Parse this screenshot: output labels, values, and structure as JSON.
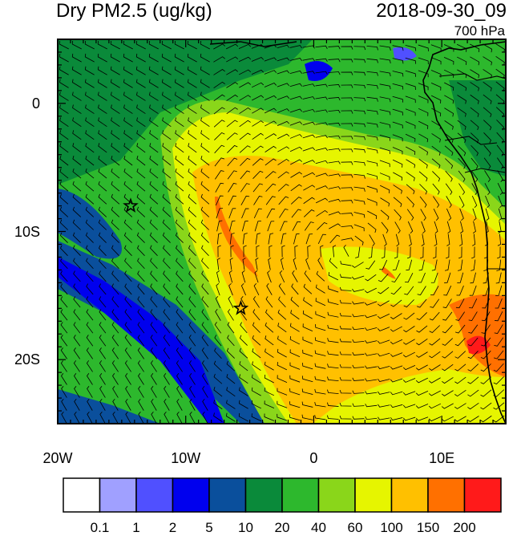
{
  "title_left": "Dry PM2.5 (ug/kg)",
  "title_right": "2018-09-30_09",
  "pressure_level": "700 hPa",
  "map": {
    "lon_range": [
      -20,
      15
    ],
    "lat_range": [
      -25,
      5
    ],
    "x_tick_labels": [
      "20W",
      "10W",
      "0",
      "10E"
    ],
    "y_tick_labels": [
      "0",
      "10S",
      "20S"
    ],
    "markers": [
      {
        "name": "star",
        "lon": -14.3,
        "lat": -8.0
      },
      {
        "name": "star",
        "lon": -5.7,
        "lat": -16.0
      }
    ]
  },
  "colorbar": {
    "colors": [
      "#ffffff",
      "#a0a0ff",
      "#5050ff",
      "#0000ee",
      "#0a4f9c",
      "#0a8a3a",
      "#2db82d",
      "#8ad61a",
      "#e6f500",
      "#ffc000",
      "#ff7000",
      "#ff1a1a"
    ],
    "labels": [
      "0.1",
      "1",
      "2",
      "5",
      "10",
      "20",
      "40",
      "60",
      "100",
      "150",
      "200"
    ]
  }
}
